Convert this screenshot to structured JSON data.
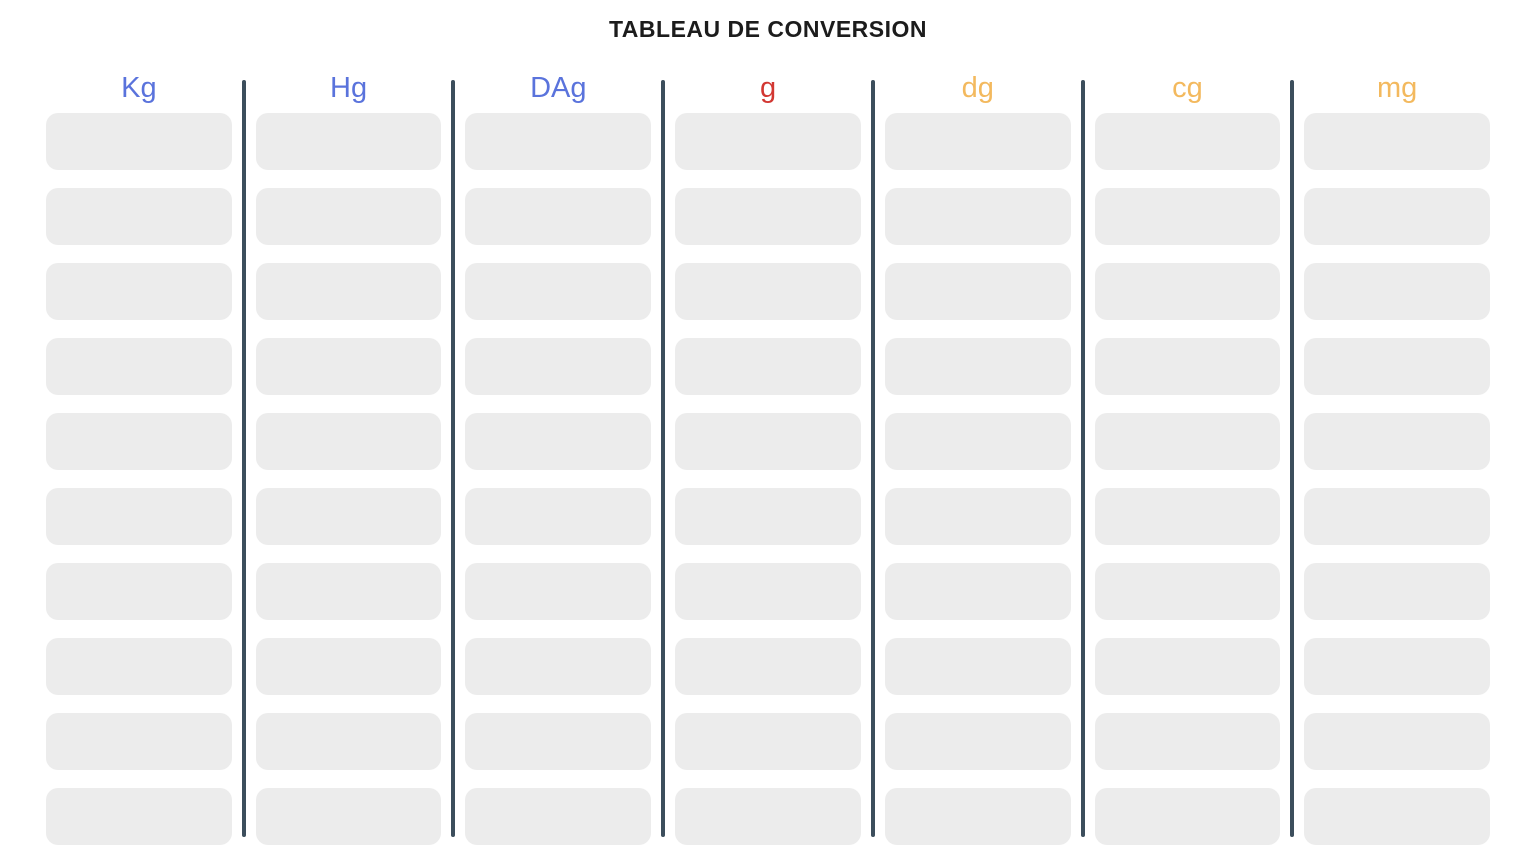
{
  "title": "TABLEAU DE CONVERSION",
  "columns": [
    {
      "label": "Kg",
      "color": "blue"
    },
    {
      "label": "Hg",
      "color": "blue"
    },
    {
      "label": "DAg",
      "color": "blue"
    },
    {
      "label": "g",
      "color": "red"
    },
    {
      "label": "dg",
      "color": "amber"
    },
    {
      "label": "cg",
      "color": "amber"
    },
    {
      "label": "mg",
      "color": "amber"
    }
  ],
  "rows_per_column": 10,
  "colors": {
    "blue": "#5A73DC",
    "red": "#D23732",
    "amber": "#F3B95E",
    "divider": "#3C4E5C",
    "cell_background": "#ECECEC",
    "page_background": "#FFFFFF",
    "title_text": "#1C1C1C"
  }
}
